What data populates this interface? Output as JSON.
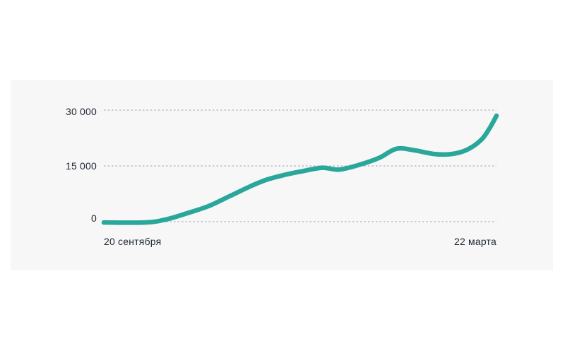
{
  "colors": {
    "page_background": "#ffffff",
    "panel_background": "#f7f7f7",
    "line": "#2aa79b",
    "grid": "#9aa0b4",
    "text": "#1f2633"
  },
  "chart_data": {
    "type": "line",
    "title": "",
    "legend": "none",
    "grid": {
      "style": "dotted",
      "visible": true,
      "orientation": "horizontal"
    },
    "x_axis": {
      "start_label": "20 сентября",
      "end_label": "22 марта",
      "x_unit": "fraction_of_date_range"
    },
    "y_axis": {
      "range": [
        0,
        30000
      ],
      "ticks": [
        {
          "label": "0",
          "value": 0
        },
        {
          "label": "15 000",
          "value": 15000
        },
        {
          "label": "30 000",
          "value": 30000
        }
      ]
    },
    "series": [
      {
        "name": "value",
        "x": [
          0,
          0.105,
          0.159,
          0.213,
          0.267,
          0.321,
          0.375,
          0.412,
          0.457,
          0.502,
          0.556,
          0.597,
          0.641,
          0.7,
          0.745,
          0.791,
          0.841,
          0.886,
          0.926,
          0.962,
          0.984,
          1.0
        ],
        "values": [
          -200,
          -200,
          600,
          2300,
          4200,
          6900,
          9600,
          11200,
          12500,
          13500,
          14500,
          14000,
          15000,
          17100,
          19600,
          19200,
          18200,
          18200,
          19400,
          22100,
          25400,
          28500
        ]
      }
    ]
  }
}
